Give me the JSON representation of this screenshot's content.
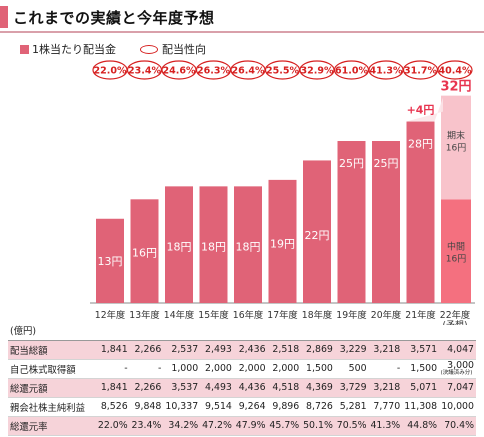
{
  "page": {
    "title": "これまでの実績と今年度予想"
  },
  "legend": {
    "bar_label": "1株当たり配当金",
    "ratio_label": "配当性向"
  },
  "chart_data": {
    "type": "bar",
    "categories": [
      "12年度",
      "13年度",
      "14年度",
      "15年度",
      "16年度",
      "17年度",
      "18年度",
      "19年度",
      "20年度",
      "21年度",
      "22年度"
    ],
    "category_note": "(予想)",
    "values": [
      13,
      16,
      18,
      18,
      18,
      19,
      22,
      25,
      25,
      28,
      32
    ],
    "value_labels": [
      "13円",
      "16円",
      "18円",
      "18円",
      "18円",
      "19円",
      "22円",
      "25円",
      "25円",
      "28円",
      "32円"
    ],
    "forecast": {
      "interim_label": "中間",
      "interim_value": "16円",
      "year_end_label": "期末",
      "year_end_value": "16円",
      "total_label": "32円",
      "increase_label": "+4円"
    },
    "payout_ratios": [
      "22.0%",
      "23.4%",
      "24.6%",
      "26.3%",
      "26.4%",
      "25.5%",
      "32.9%",
      "61.0%",
      "41.3%",
      "31.7%",
      "40.4%"
    ],
    "ylim": [
      0,
      40
    ],
    "colors": {
      "bar": "#e06377",
      "forecast_interim": "#f4707f",
      "forecast_year_end": "#f8c3cb",
      "ratio_ring": "#d62020"
    }
  },
  "table": {
    "unit": "(億円)",
    "rows": [
      {
        "label": "配当総額",
        "values": [
          "1,841",
          "2,266",
          "2,537",
          "2,493",
          "2,436",
          "2,518",
          "2,869",
          "3,229",
          "3,218",
          "3,571",
          "4,047"
        ]
      },
      {
        "label": "自己株式取得額",
        "values": [
          "-",
          "-",
          "1,000",
          "2,000",
          "2,000",
          "2,000",
          "1,500",
          "500",
          "-",
          "1,500",
          "3,000"
        ],
        "last_note": "(決議済み分)"
      },
      {
        "label": "総還元額",
        "values": [
          "1,841",
          "2,266",
          "3,537",
          "4,493",
          "4,436",
          "4,518",
          "4,369",
          "3,729",
          "3,218",
          "5,071",
          "7,047"
        ]
      },
      {
        "label": "親会社株主純利益",
        "values": [
          "8,526",
          "9,848",
          "10,337",
          "9,514",
          "9,264",
          "9,896",
          "8,726",
          "5,281",
          "7,770",
          "11,308",
          "10,000"
        ]
      },
      {
        "label": "総還元率",
        "values": [
          "22.0%",
          "23.4%",
          "34.2%",
          "47.2%",
          "47.9%",
          "45.7%",
          "50.1%",
          "70.5%",
          "41.3%",
          "44.8%",
          "70.4%"
        ]
      }
    ]
  }
}
